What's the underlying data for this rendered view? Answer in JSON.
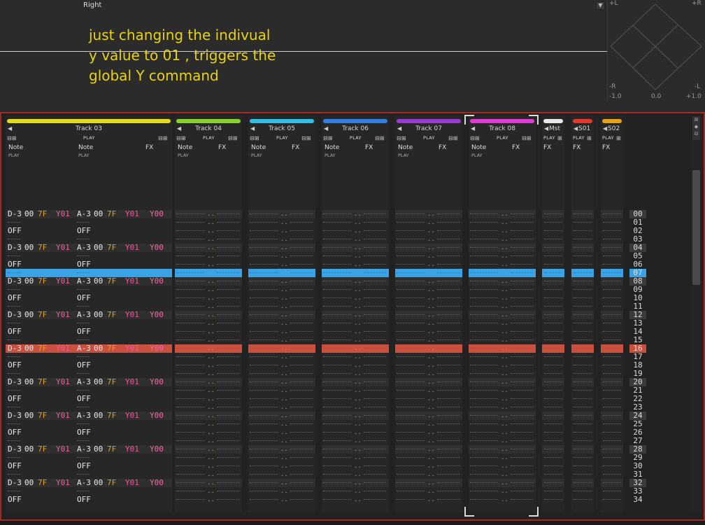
{
  "top": {
    "dropdown_value": "Right",
    "annotation_lines": [
      "just changing the indivual",
      "y value to 01 , triggers the",
      "global Y command"
    ]
  },
  "vectorscope": {
    "top_left": "+L",
    "top_right": "+R",
    "bottom_left": "-R",
    "bottom_right": "-L",
    "scale_left": "-1.0",
    "scale_mid": "0.0",
    "scale_right": "+1.0"
  },
  "colors": {
    "track03": "#e6d81a",
    "track04": "#86d12a",
    "track05": "#2ec0e6",
    "track06": "#2f7fe6",
    "track07": "#9a3ad6",
    "track08": "#e23ad6",
    "mst": "#e8e8e8",
    "s01": "#e8382a",
    "s02": "#e8a21a",
    "cursor_row": "#3aa3e6",
    "play_row": "#c9503f",
    "annotation": "#f2e000"
  },
  "tracks": [
    {
      "name": "Track 03",
      "play": "PLAY",
      "columns": [
        "Note",
        "Note",
        "FX"
      ],
      "subs": [
        "PLAY",
        "PLAY",
        ""
      ]
    },
    {
      "name": "Track 04",
      "play": "PLAY",
      "columns": [
        "Note",
        "FX"
      ],
      "subs": [
        "PLAY",
        ""
      ]
    },
    {
      "name": "Track 05",
      "play": "PLAY",
      "columns": [
        "Note",
        "FX"
      ],
      "subs": [
        "PLAY",
        ""
      ]
    },
    {
      "name": "Track 06",
      "play": "PLAY",
      "columns": [
        "Note",
        "FX"
      ],
      "subs": [
        "PLAY",
        ""
      ]
    },
    {
      "name": "Track 07",
      "play": "PLAY",
      "columns": [
        "Note",
        "FX"
      ],
      "subs": [
        "PLAY",
        ""
      ]
    },
    {
      "name": "Track 08",
      "play": "PLAY",
      "columns": [
        "Note",
        "FX"
      ],
      "subs": [
        "PLAY",
        ""
      ]
    },
    {
      "name": "Mst",
      "play": "PLAY",
      "columns": [
        "FX"
      ],
      "subs": [
        ""
      ]
    },
    {
      "name": "S01",
      "play": "PLAY",
      "columns": [
        "FX"
      ],
      "subs": [
        ""
      ]
    },
    {
      "name": "S02",
      "play": "PLAY",
      "columns": [
        "FX"
      ],
      "subs": [
        ""
      ]
    }
  ],
  "track03_rows": [
    {
      "n1": "D-3",
      "i1": "00",
      "v1": "7F",
      "f1": "Y01",
      "n2": "A-3",
      "i2": "00",
      "v2": "7F",
      "f2": "Y01",
      "fx": "Y00"
    },
    {
      "n1": "OFF",
      "n2": "OFF"
    },
    {
      "n1": "D-3",
      "i1": "00",
      "v1": "7F",
      "f1": "Y01",
      "n2": "A-3",
      "i2": "00",
      "v2": "7F",
      "f2": "Y01",
      "fx": "Y00"
    },
    {
      "n1": "OFF",
      "n2": "OFF"
    },
    {
      "n1": "D-3",
      "i1": "00",
      "v1": "7F",
      "f1": "Y01",
      "n2": "A-3",
      "i2": "00",
      "v2": "7F",
      "f2": "Y01",
      "fx": "Y00"
    },
    {
      "n1": "OFF",
      "n2": "OFF"
    },
    {
      "n1": "D-3",
      "i1": "00",
      "v1": "7F",
      "f1": "Y01",
      "n2": "A-3",
      "i2": "00",
      "v2": "7F",
      "f2": "Y01",
      "fx": "Y00"
    },
    {
      "n1": "OFF",
      "n2": "OFF"
    },
    {
      "n1": "D-3",
      "i1": "00",
      "v1": "7F",
      "f1": "Y01",
      "n2": "A-3",
      "i2": "00",
      "v2": "7F",
      "f2": "Y01",
      "fx": "Y00"
    },
    {
      "n1": "OFF",
      "n2": "OFF"
    },
    {
      "n1": "D-3",
      "i1": "00",
      "v1": "7F",
      "f1": "Y01",
      "n2": "A-3",
      "i2": "00",
      "v2": "7F",
      "f2": "Y01",
      "fx": "Y00"
    },
    {
      "n1": "OFF",
      "n2": "OFF"
    },
    {
      "n1": "D-3",
      "i1": "00",
      "v1": "7F",
      "f1": "Y01",
      "n2": "A-3",
      "i2": "00",
      "v2": "7F",
      "f2": "Y01",
      "fx": "Y00"
    },
    {
      "n1": "OFF",
      "n2": "OFF"
    },
    {
      "n1": "D-3",
      "i1": "00",
      "v1": "7F",
      "f1": "Y01",
      "n2": "A-3",
      "i2": "00",
      "v2": "7F",
      "f2": "Y01",
      "fx": "Y00"
    },
    {
      "n1": "OFF",
      "n2": "OFF"
    }
  ],
  "row_numbers": [
    "00",
    "01",
    "02",
    "03",
    "04",
    "05",
    "06",
    "07",
    "08",
    "09",
    "10",
    "11",
    "12",
    "13",
    "14",
    "15",
    "16",
    "17",
    "18",
    "19",
    "20",
    "21",
    "22",
    "23",
    "24",
    "25",
    "26",
    "27",
    "28",
    "29",
    "30",
    "31",
    "32",
    "33",
    "34"
  ],
  "cursor_row": 7,
  "play_row": 16
}
